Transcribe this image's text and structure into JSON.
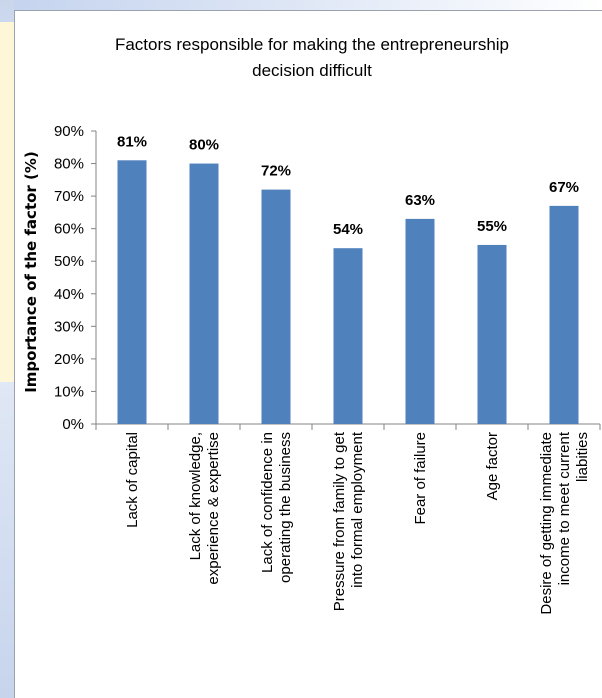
{
  "chart_data": {
    "type": "bar",
    "title": "Factors responsible for making the entrepreneurship decision difficult",
    "title_lines": [
      "Factors responsible for making the entrepreneurship",
      "decision difficult"
    ],
    "xlabel": "",
    "ylabel": "Importance of the factor (%)",
    "ylim": [
      0,
      90
    ],
    "yticks": [
      "0%",
      "10%",
      "20%",
      "30%",
      "40%",
      "50%",
      "60%",
      "70%",
      "80%",
      "90%"
    ],
    "grid": false,
    "legend": "none",
    "bar_color": "#4f81bd",
    "categories": [
      "Lack of capital",
      "Lack of knowledge, experience & expertise",
      "Lack of confidence in operating the business",
      "Pressure from family to get into formal employment",
      "Fear of failure",
      "Age factor",
      "Desire of getting immediate income to meet current liabities"
    ],
    "category_lines": [
      [
        "Lack of capital"
      ],
      [
        "Lack of knowledge,",
        "experience & expertise"
      ],
      [
        "Lack of confidence in",
        "operating the business"
      ],
      [
        "Pressure from family to get",
        "into formal employment"
      ],
      [
        "Fear of failure"
      ],
      [
        "Age factor"
      ],
      [
        "Desire of getting immediate",
        "income to meet current",
        "liabities"
      ]
    ],
    "values": [
      81,
      80,
      72,
      54,
      63,
      55,
      67
    ],
    "data_labels": [
      "81%",
      "80%",
      "72%",
      "54%",
      "63%",
      "55%",
      "67%"
    ]
  }
}
